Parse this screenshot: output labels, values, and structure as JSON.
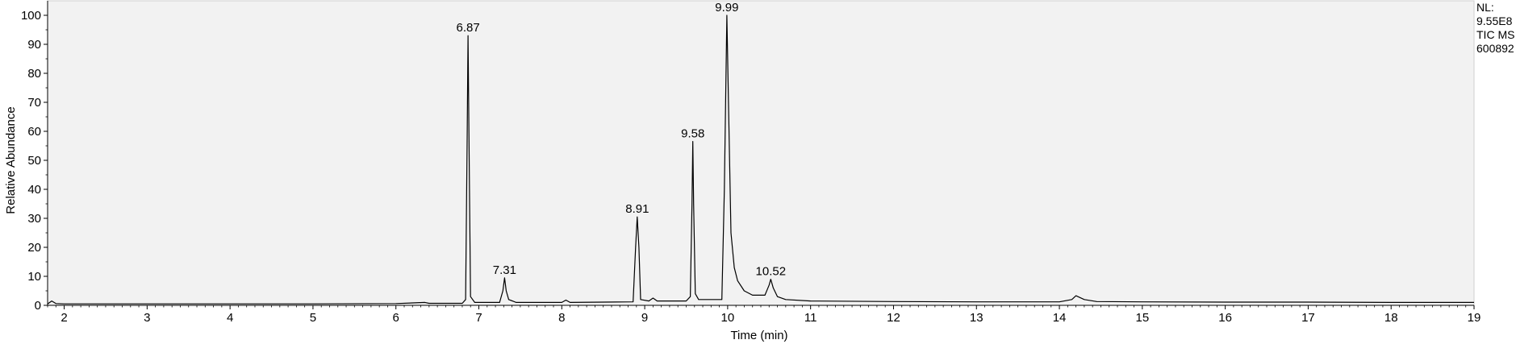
{
  "chart_data": {
    "type": "line",
    "title": "",
    "xlabel": "Time (min)",
    "ylabel": "Relative Abundance",
    "xlim": [
      1.8,
      19.0
    ],
    "ylim": [
      0,
      100
    ],
    "x_ticks": [
      2,
      3,
      4,
      5,
      6,
      7,
      8,
      9,
      10,
      11,
      12,
      13,
      14,
      15,
      16,
      17,
      18,
      19
    ],
    "y_ticks": [
      0,
      10,
      20,
      30,
      40,
      50,
      60,
      70,
      80,
      90,
      100
    ],
    "series": [
      {
        "x": [
          1.8,
          1.85,
          1.9,
          2.0,
          2.5,
          3.0,
          4.0,
          5.0,
          6.0,
          6.35,
          6.4,
          6.8,
          6.84,
          6.86,
          6.87,
          6.88,
          6.9,
          6.95,
          7.25,
          7.29,
          7.31,
          7.33,
          7.36,
          7.45,
          8.0,
          8.05,
          8.1,
          8.86,
          8.89,
          8.91,
          8.93,
          8.95,
          9.05,
          9.1,
          9.15,
          9.5,
          9.55,
          9.57,
          9.58,
          9.59,
          9.61,
          9.65,
          9.93,
          9.96,
          9.99,
          10.01,
          10.04,
          10.08,
          10.12,
          10.2,
          10.3,
          10.45,
          10.5,
          10.52,
          10.55,
          10.6,
          10.7,
          11.0,
          12.0,
          13.0,
          14.0,
          14.15,
          14.2,
          14.3,
          14.45,
          15.0,
          16.0,
          17.0,
          18.0,
          19.0
        ],
        "y": [
          0.5,
          1.5,
          0.6,
          0.5,
          0.5,
          0.5,
          0.5,
          0.5,
          0.6,
          1.0,
          0.7,
          0.7,
          2.0,
          60.0,
          93.0,
          60.0,
          3.0,
          1.0,
          1.0,
          5.0,
          9.5,
          5.0,
          2.0,
          1.0,
          1.0,
          1.8,
          1.0,
          1.2,
          20.0,
          30.5,
          20.0,
          2.0,
          1.5,
          2.5,
          1.5,
          1.5,
          3.0,
          35.0,
          56.5,
          35.0,
          4.0,
          2.0,
          2.0,
          40.0,
          100.0,
          70.0,
          25.0,
          13.0,
          8.5,
          5.0,
          3.5,
          3.5,
          7.0,
          9.0,
          6.0,
          3.0,
          2.0,
          1.5,
          1.3,
          1.2,
          1.2,
          2.0,
          3.3,
          2.0,
          1.3,
          1.2,
          1.1,
          1.1,
          1.0,
          1.0
        ]
      }
    ],
    "annotations": [
      {
        "x": 6.87,
        "y": 93.0,
        "text": "6.87"
      },
      {
        "x": 7.31,
        "y": 9.5,
        "text": "7.31"
      },
      {
        "x": 8.91,
        "y": 30.5,
        "text": "8.91"
      },
      {
        "x": 9.58,
        "y": 56.5,
        "text": "9.58"
      },
      {
        "x": 9.99,
        "y": 100.0,
        "text": "9.99"
      },
      {
        "x": 10.52,
        "y": 9.0,
        "text": "10.52"
      }
    ],
    "grid": false,
    "colors": {
      "line": "#000000",
      "background": "#f2f2f2",
      "axis": "#000000"
    }
  },
  "info": {
    "nl_label": "NL:",
    "nl_value": "9.55E8",
    "trace": "TIC  MS",
    "sample": "600892"
  }
}
